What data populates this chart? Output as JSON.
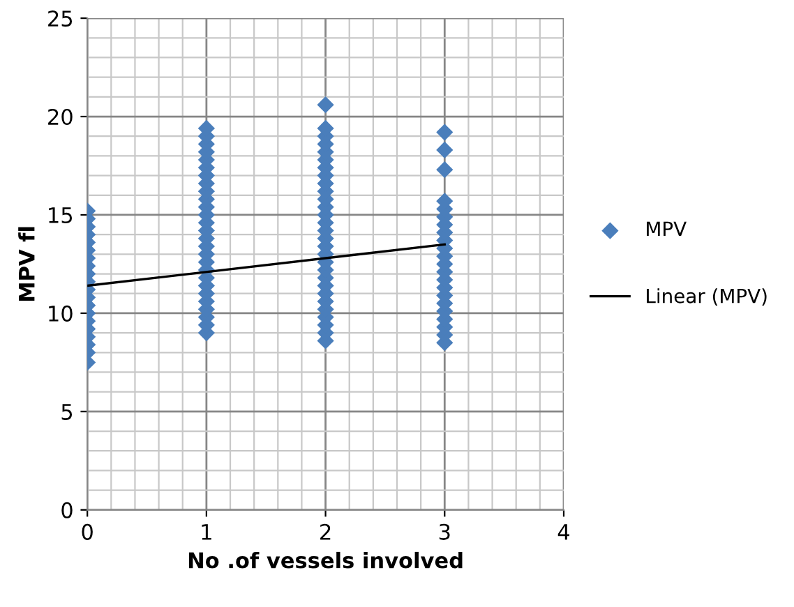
{
  "chart_data": {
    "type": "scatter",
    "xlabel": "No .of vessels involved",
    "ylabel": "MPV fl",
    "xlim": [
      0,
      4
    ],
    "ylim": [
      0,
      25
    ],
    "xticks": [
      0,
      1,
      2,
      3,
      4
    ],
    "yticks": [
      0,
      5,
      10,
      15,
      20,
      25
    ],
    "grid": true,
    "legend": "right",
    "series": [
      {
        "name": "MPV",
        "color": "#4a7ebb",
        "marker": "diamond",
        "x": [
          0,
          0,
          0,
          0,
          0,
          0,
          0,
          0,
          0,
          0,
          0,
          0,
          0,
          0,
          0,
          0,
          0,
          0,
          0,
          0,
          1,
          1,
          1,
          1,
          1,
          1,
          1,
          1,
          1,
          1,
          1,
          1,
          1,
          1,
          1,
          1,
          1,
          1,
          1,
          1,
          1,
          1,
          1,
          1,
          1,
          1,
          1,
          2,
          2,
          2,
          2,
          2,
          2,
          2,
          2,
          2,
          2,
          2,
          2,
          2,
          2,
          2,
          2,
          2,
          2,
          2,
          2,
          2,
          2,
          2,
          2,
          2,
          2,
          2,
          2,
          2,
          3,
          3,
          3,
          3,
          3,
          3,
          3,
          3,
          3,
          3,
          3,
          3,
          3,
          3,
          3,
          3,
          3,
          3,
          3,
          3,
          3,
          3
        ],
        "values": [
          7.5,
          8.0,
          8.4,
          8.8,
          9.2,
          9.6,
          10.0,
          10.4,
          10.8,
          11.2,
          11.6,
          12.0,
          12.4,
          12.8,
          13.2,
          13.6,
          14.0,
          14.4,
          14.8,
          15.2,
          9.0,
          9.4,
          9.8,
          10.2,
          10.6,
          11.0,
          11.4,
          11.8,
          12.2,
          12.6,
          13.0,
          13.4,
          13.8,
          14.2,
          14.6,
          15.0,
          15.4,
          15.8,
          16.2,
          16.6,
          17.0,
          17.4,
          17.8,
          18.2,
          18.6,
          19.0,
          19.4,
          8.6,
          9.0,
          9.4,
          9.8,
          10.2,
          10.6,
          11.0,
          11.4,
          11.8,
          12.2,
          12.6,
          13.0,
          13.4,
          13.8,
          14.2,
          14.6,
          15.0,
          15.4,
          15.8,
          16.2,
          16.6,
          17.0,
          17.4,
          17.8,
          18.2,
          18.6,
          19.0,
          19.4,
          20.6,
          8.5,
          8.9,
          9.3,
          9.7,
          10.1,
          10.5,
          10.9,
          11.3,
          11.7,
          12.1,
          12.5,
          12.9,
          13.3,
          13.7,
          14.1,
          14.5,
          14.9,
          15.3,
          15.7,
          17.3,
          18.3,
          19.2
        ]
      },
      {
        "name": "Linear (MPV)",
        "color": "#000000",
        "type": "line",
        "marker": "none",
        "x": [
          0,
          3
        ],
        "values": [
          11.4,
          13.5
        ]
      }
    ]
  }
}
